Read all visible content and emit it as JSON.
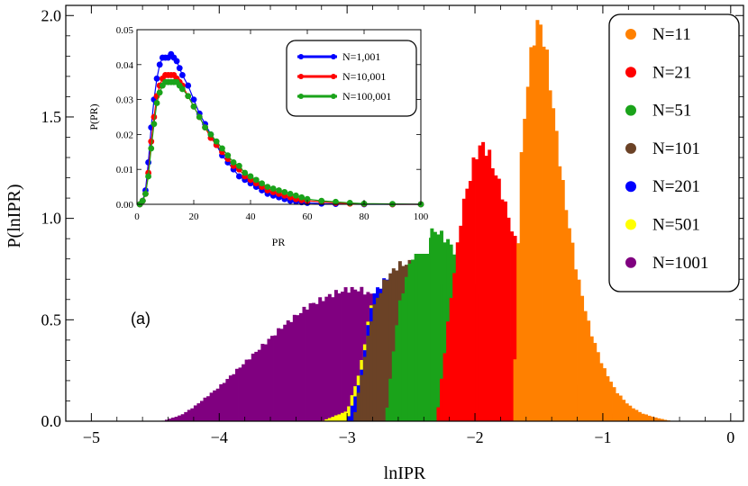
{
  "chart_data": [
    {
      "type": "bar",
      "xlabel": "lnIPR",
      "ylabel": "P(lnIPR)",
      "xlim": [
        -5.2,
        0.1
      ],
      "ylim": [
        0,
        2.05
      ],
      "xticks": [
        "−5",
        "−4",
        "−3",
        "−2",
        "−1",
        "0"
      ],
      "yticks": [
        "0.0",
        "0.5",
        "1.0",
        "1.5",
        "2.0"
      ],
      "annotation": "(a)",
      "legend_position": "top-right",
      "bin_width": 0.025,
      "series": [
        {
          "name": "N=1001",
          "color": "#800080",
          "x": [
            -4.45,
            -4.3,
            -4.2,
            -4.1,
            -4.0,
            -3.9,
            -3.8,
            -3.7,
            -3.6,
            -3.5,
            -3.4,
            -3.3,
            -3.2,
            -3.1,
            -3.0,
            -2.9,
            -2.8,
            -2.7,
            -2.6,
            -2.5,
            -2.4,
            -2.3,
            -2.2,
            -2.1,
            -2.0,
            -1.9,
            -1.8,
            -1.7,
            -1.6,
            -1.5,
            -1.4,
            -1.3,
            -1.2,
            -1.1,
            -1.0,
            -0.9
          ],
          "y": [
            0.0,
            0.03,
            0.07,
            0.12,
            0.17,
            0.23,
            0.29,
            0.35,
            0.41,
            0.47,
            0.52,
            0.57,
            0.6,
            0.63,
            0.65,
            0.65,
            0.62,
            0.58,
            0.52,
            0.46,
            0.39,
            0.32,
            0.26,
            0.2,
            0.15,
            0.11,
            0.07,
            0.05,
            0.03,
            0.02,
            0.01,
            0.005,
            0.003,
            0.002,
            0.001,
            0.0
          ]
        },
        {
          "name": "N=501",
          "color": "#ffff00",
          "x": [
            -3.2,
            -3.0,
            -2.9,
            -2.8,
            -2.7,
            -2.6,
            -2.5,
            -2.4,
            -2.3,
            -2.2,
            -2.1,
            -2.0,
            -1.9,
            -1.8,
            -1.7,
            -1.6,
            -1.5,
            -1.4,
            -1.3,
            -1.2,
            -1.1,
            -1.0,
            -0.9
          ],
          "y": [
            0.0,
            0.05,
            0.25,
            0.62,
            0.64,
            0.62,
            0.57,
            0.5,
            0.43,
            0.36,
            0.29,
            0.22,
            0.16,
            0.11,
            0.08,
            0.05,
            0.03,
            0.02,
            0.01,
            0.005,
            0.003,
            0.001,
            0.0
          ]
        },
        {
          "name": "N=201",
          "color": "#0000ff",
          "x": [
            -3.0,
            -2.9,
            -2.8,
            -2.7,
            -2.6,
            -2.5,
            -2.4,
            -2.3,
            -2.2,
            -2.1,
            -2.0,
            -1.9,
            -1.8,
            -1.7,
            -1.6,
            -1.5,
            -1.4,
            -1.3,
            -1.2,
            -1.1,
            -1.0,
            -0.9,
            -0.8
          ],
          "y": [
            0.0,
            0.2,
            0.62,
            0.7,
            0.73,
            0.7,
            0.65,
            0.58,
            0.5,
            0.42,
            0.34,
            0.26,
            0.19,
            0.13,
            0.09,
            0.06,
            0.04,
            0.02,
            0.01,
            0.005,
            0.003,
            0.001,
            0.0
          ]
        },
        {
          "name": "N=101",
          "color": "#6b4226",
          "x": [
            -2.95,
            -2.8,
            -2.7,
            -2.6,
            -2.5,
            -2.4,
            -2.3,
            -2.2,
            -2.1,
            -2.0,
            -1.9,
            -1.8,
            -1.7,
            -1.6,
            -1.5,
            -1.4,
            -1.3,
            -1.2,
            -1.1,
            -1.0,
            -0.9,
            -0.8
          ],
          "y": [
            0.0,
            0.55,
            0.7,
            0.77,
            0.78,
            0.75,
            0.69,
            0.61,
            0.52,
            0.43,
            0.35,
            0.27,
            0.2,
            0.14,
            0.1,
            0.06,
            0.04,
            0.02,
            0.01,
            0.005,
            0.002,
            0.0
          ]
        },
        {
          "name": "N=51",
          "color": "#1aa31a",
          "x": [
            -2.7,
            -2.6,
            -2.5,
            -2.4,
            -2.3,
            -2.2,
            -2.1,
            -2.0,
            -1.9,
            -1.8,
            -1.7,
            -1.6,
            -1.5,
            -1.4,
            -1.3,
            -1.2,
            -1.1,
            -1.0,
            -0.9,
            -0.8
          ],
          "y": [
            0.0,
            0.55,
            0.8,
            0.92,
            0.94,
            0.88,
            0.77,
            0.65,
            0.53,
            0.42,
            0.33,
            0.24,
            0.17,
            0.12,
            0.08,
            0.05,
            0.03,
            0.015,
            0.005,
            0.0
          ]
        },
        {
          "name": "N=21",
          "color": "#ff0000",
          "x": [
            -2.3,
            -2.2,
            -2.1,
            -2.0,
            -1.95,
            -1.9,
            -1.8,
            -1.7,
            -1.6,
            -1.5,
            -1.4,
            -1.3,
            -1.2,
            -1.1,
            -1.0,
            -0.9,
            -0.8,
            -0.7
          ],
          "y": [
            0.0,
            0.55,
            1.05,
            1.3,
            1.37,
            1.33,
            1.15,
            0.92,
            0.7,
            0.52,
            0.38,
            0.26,
            0.17,
            0.1,
            0.06,
            0.03,
            0.01,
            0.0
          ]
        },
        {
          "name": "N=11",
          "color": "#ff8000",
          "x": [
            -1.7,
            -1.65,
            -1.6,
            -1.55,
            -1.5,
            -1.45,
            -1.4,
            -1.35,
            -1.3,
            -1.2,
            -1.1,
            -1.0,
            -0.9,
            -0.8,
            -0.7,
            -0.6,
            -0.5,
            -0.45
          ],
          "y": [
            0.0,
            1.2,
            1.6,
            1.87,
            1.98,
            1.85,
            1.6,
            1.35,
            1.1,
            0.72,
            0.45,
            0.27,
            0.15,
            0.08,
            0.04,
            0.02,
            0.005,
            0.0
          ]
        }
      ]
    },
    {
      "type": "line",
      "xlabel": "PR",
      "ylabel": "P(PR)",
      "xlim": [
        0,
        100
      ],
      "ylim": [
        0,
        0.05
      ],
      "xticks": [
        "0",
        "20",
        "40",
        "60",
        "80",
        "100"
      ],
      "yticks": [
        "0.00",
        "0.01",
        "0.02",
        "0.03",
        "0.04",
        "0.05"
      ],
      "legend_position": "top-right",
      "series": [
        {
          "name": "N=1,001",
          "color": "#0000ff",
          "x": [
            1,
            2,
            3,
            4,
            5,
            6,
            7,
            8,
            9,
            10,
            11,
            12,
            13,
            14,
            15,
            16,
            18,
            20,
            22,
            24,
            26,
            28,
            30,
            32,
            34,
            36,
            38,
            40,
            42,
            44,
            46,
            48,
            50,
            52,
            54,
            56,
            58,
            60,
            65,
            70,
            80,
            90,
            100
          ],
          "y": [
            0.0,
            0.001,
            0.004,
            0.012,
            0.022,
            0.03,
            0.036,
            0.04,
            0.042,
            0.042,
            0.042,
            0.043,
            0.042,
            0.041,
            0.039,
            0.037,
            0.034,
            0.03,
            0.026,
            0.023,
            0.02,
            0.017,
            0.014,
            0.012,
            0.01,
            0.008,
            0.007,
            0.006,
            0.005,
            0.004,
            0.003,
            0.0025,
            0.002,
            0.0015,
            0.001,
            0.0008,
            0.0006,
            0.0004,
            0.0002,
            0.0001,
            0.0,
            0.0,
            0.0
          ]
        },
        {
          "name": "N=10,001",
          "color": "#ff0000",
          "x": [
            1,
            2,
            3,
            4,
            5,
            6,
            7,
            8,
            9,
            10,
            11,
            12,
            13,
            14,
            15,
            16,
            18,
            20,
            22,
            24,
            26,
            28,
            30,
            32,
            34,
            36,
            38,
            40,
            42,
            44,
            46,
            48,
            50,
            52,
            54,
            56,
            58,
            60,
            65,
            70,
            75,
            80,
            90,
            100
          ],
          "y": [
            0.0,
            0.001,
            0.003,
            0.009,
            0.018,
            0.025,
            0.031,
            0.034,
            0.036,
            0.037,
            0.037,
            0.037,
            0.037,
            0.036,
            0.035,
            0.034,
            0.031,
            0.028,
            0.025,
            0.022,
            0.019,
            0.017,
            0.015,
            0.013,
            0.011,
            0.01,
            0.008,
            0.007,
            0.006,
            0.005,
            0.004,
            0.0035,
            0.003,
            0.0025,
            0.002,
            0.0015,
            0.0012,
            0.001,
            0.0007,
            0.0004,
            0.0002,
            0.0001,
            0.0,
            0.0
          ]
        },
        {
          "name": "N=100,001",
          "color": "#1aa31a",
          "x": [
            1,
            2,
            3,
            4,
            5,
            6,
            7,
            8,
            9,
            10,
            11,
            12,
            13,
            14,
            15,
            16,
            18,
            20,
            22,
            24,
            26,
            28,
            30,
            32,
            34,
            36,
            38,
            40,
            42,
            44,
            46,
            48,
            50,
            52,
            54,
            56,
            58,
            60,
            65,
            70,
            75,
            80,
            90,
            100
          ],
          "y": [
            0.0,
            0.001,
            0.003,
            0.008,
            0.016,
            0.023,
            0.029,
            0.032,
            0.034,
            0.035,
            0.035,
            0.035,
            0.035,
            0.035,
            0.034,
            0.033,
            0.031,
            0.028,
            0.025,
            0.022,
            0.02,
            0.018,
            0.016,
            0.014,
            0.012,
            0.011,
            0.009,
            0.008,
            0.007,
            0.006,
            0.005,
            0.0045,
            0.004,
            0.0035,
            0.003,
            0.0025,
            0.002,
            0.0015,
            0.001,
            0.0007,
            0.0004,
            0.0002,
            0.0001,
            0.0
          ]
        }
      ]
    }
  ]
}
